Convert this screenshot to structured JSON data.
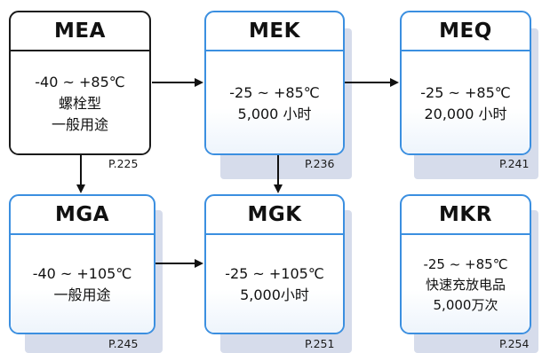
{
  "nodes": {
    "mea": {
      "title": "MEA",
      "lines": [
        "-40 ~ +85℃",
        "螺栓型",
        "一般用途"
      ],
      "page": "P.225"
    },
    "mek": {
      "title": "MEK",
      "lines": [
        "-25 ~ +85℃",
        "5,000 小时"
      ],
      "page": "P.236"
    },
    "meq": {
      "title": "MEQ",
      "lines": [
        "-25 ~ +85℃",
        "20,000 小时"
      ],
      "page": "P.241"
    },
    "mga": {
      "title": "MGA",
      "lines": [
        "-40 ~ +105℃",
        "一般用途"
      ],
      "page": "P.245"
    },
    "mgk": {
      "title": "MGK",
      "lines": [
        "-25 ~ +105℃",
        "5,000小时"
      ],
      "page": "P.251"
    },
    "mkr": {
      "title": "MKR",
      "lines": [
        "-25 ~ +85℃",
        "快速充放电品",
        "5,000万次"
      ],
      "page": "P.254"
    }
  },
  "colors": {
    "border_blue": "#3b8fe0",
    "border_black": "#1a1a1a",
    "shadow": "#d6dceb"
  }
}
